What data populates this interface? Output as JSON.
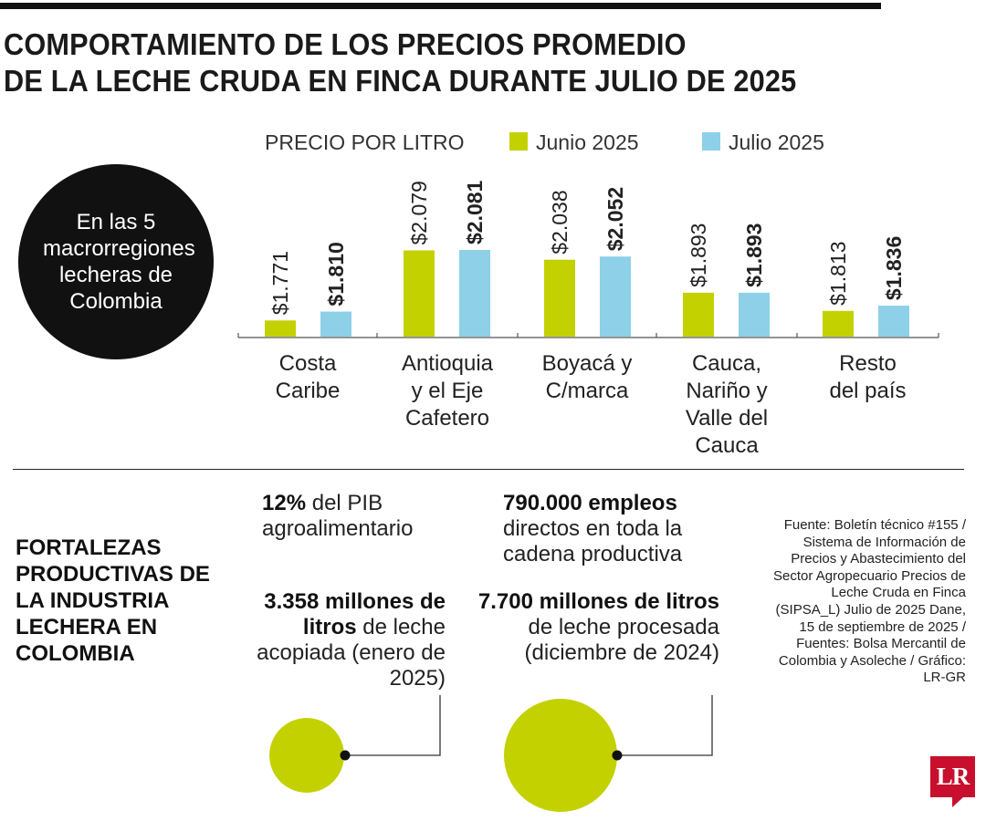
{
  "title": {
    "line1": "COMPORTAMIENTO DE LOS PRECIOS PROMEDIO",
    "line2": "DE LA LECHE CRUDA EN FINCA DURANTE JULIO DE 2025"
  },
  "circle_text": "En las 5 macrorregiones lecheras de Colombia",
  "colors": {
    "junio": "#c4d100",
    "julio": "#8dd0e8",
    "text": "#1a1a1a"
  },
  "chart_data": {
    "type": "bar",
    "label": "PRECIO POR LITRO",
    "legend_position": "top",
    "categories": [
      [
        "Costa",
        "Caribe"
      ],
      [
        "Antioquia",
        "y el Eje",
        "Cafetero"
      ],
      [
        "Boyacá y",
        "C/marca"
      ],
      [
        "Cauca,",
        "Nariño y",
        "Valle del",
        "Cauca"
      ],
      [
        "Resto",
        "del país"
      ]
    ],
    "series": [
      {
        "name": "Junio 2025",
        "values": [
          1771,
          2079,
          2038,
          1893,
          1813
        ],
        "labels": [
          "$1.771",
          "$2.079",
          "$2.038",
          "$1.893",
          "$1.813"
        ]
      },
      {
        "name": "Julio 2025",
        "values": [
          1810,
          2081,
          2052,
          1893,
          1836
        ],
        "labels": [
          "$1.810",
          "$2.081",
          "$2.052",
          "$1.893",
          "$1.836"
        ]
      }
    ]
  },
  "fortalezas": "FORTALEZAS PRODUCTIVAS DE LA INDUSTRIA LECHERA EN COLOMBIA",
  "stats": {
    "pib": {
      "bold": "12%",
      "text": " del PIB agroalimentario"
    },
    "empleos": {
      "bold": "790.000 empleos",
      "text": " directos en toda la cadena productiva"
    },
    "acopiada": {
      "bold": "3.358 millones de litros",
      "text": " de leche acopiada (enero de 2025)",
      "value": 3358
    },
    "procesada": {
      "bold": "7.700 millones de litros",
      "text": " de leche procesada (diciembre de 2024)",
      "value": 7700
    }
  },
  "source": "Fuente: Boletín técnico #155 / Sistema de Información de Precios y Abastecimiento del Sector Agropecuario Precios de Leche Cruda en Finca (SIPSA_L) Julio de 2025 Dane, 15 de septiembre de 2025 / Fuentes: Bolsa Mercantil de Colombia y Asoleche / Gráfico: LR-GR",
  "logo": "LR"
}
